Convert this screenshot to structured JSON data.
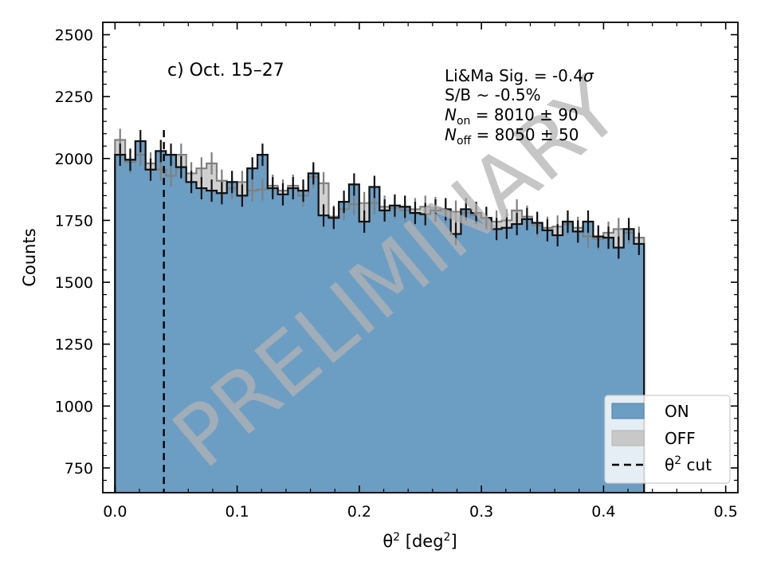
{
  "chart_data": {
    "type": "bar",
    "title": "",
    "panel_label": "c) Oct. 15–27",
    "xlabel": "θ² [deg²]",
    "ylabel": "Counts",
    "xlim": [
      -0.01,
      0.51
    ],
    "ylim": [
      650,
      2550
    ],
    "x_ticks": [
      0.0,
      0.1,
      0.2,
      0.3,
      0.4,
      0.5
    ],
    "x_tick_labels": [
      "0.0",
      "0.1",
      "0.2",
      "0.3",
      "0.4",
      "0.5"
    ],
    "y_ticks": [
      750,
      1000,
      1250,
      1500,
      1750,
      2000,
      2250,
      2500
    ],
    "y_tick_labels": [
      "750",
      "1000",
      "1250",
      "1500",
      "1750",
      "2000",
      "2250",
      "2500"
    ],
    "bin_edges_start": 0.0,
    "bin_width": 0.00833,
    "series": [
      {
        "name": "ON",
        "color": "#6c9ec4",
        "values": [
          2015,
          1995,
          2070,
          1955,
          2030,
          2015,
          1965,
          1905,
          1880,
          1870,
          1860,
          1905,
          1850,
          1960,
          2015,
          1880,
          1855,
          1880,
          1870,
          1940,
          1770,
          1760,
          1825,
          1895,
          1745,
          1885,
          1790,
          1810,
          1805,
          1780,
          1775,
          1790,
          1795,
          1695,
          1795,
          1780,
          1760,
          1715,
          1720,
          1735,
          1755,
          1740,
          1710,
          1690,
          1745,
          1705,
          1745,
          1685,
          1680,
          1640,
          1715,
          1655
        ]
      },
      {
        "name": "OFF",
        "color": "#c8c8c8",
        "values": [
          2075,
          1985,
          2015,
          1980,
          1955,
          1930,
          2015,
          1940,
          1960,
          1980,
          1910,
          1880,
          1905,
          1870,
          1875,
          1890,
          1870,
          1890,
          1850,
          1925,
          1900,
          1765,
          1795,
          1815,
          1820,
          1820,
          1805,
          1800,
          1790,
          1795,
          1805,
          1800,
          1785,
          1785,
          1780,
          1770,
          1755,
          1745,
          1750,
          1790,
          1765,
          1730,
          1720,
          1725,
          1735,
          1720,
          1685,
          1675,
          1700,
          1715,
          1700,
          1680
        ]
      }
    ],
    "error_bar_half_width": 45,
    "cut_line": {
      "x": 0.04,
      "style": "dashed",
      "color": "#000000"
    },
    "stats": [
      {
        "label": "Li&Ma Sig. = -0.4",
        "symbol": "σ"
      },
      {
        "label": "S/B  ∼  -0.5%"
      },
      {
        "label": "N",
        "sub": "on",
        "value": " = 8010 ± 90"
      },
      {
        "label": "N",
        "sub": "off",
        "value": " = 8050 ± 50"
      }
    ],
    "legend": {
      "position": "lower-right",
      "entries": [
        {
          "label": "ON",
          "kind": "patch",
          "color": "#6c9ec4"
        },
        {
          "label": "OFF",
          "kind": "patch",
          "color": "#c8c8c8"
        },
        {
          "label": "θ² cut",
          "kind": "dashed-line",
          "color": "#000000"
        }
      ]
    },
    "watermark": "PRELIMINARY",
    "grid": false
  }
}
